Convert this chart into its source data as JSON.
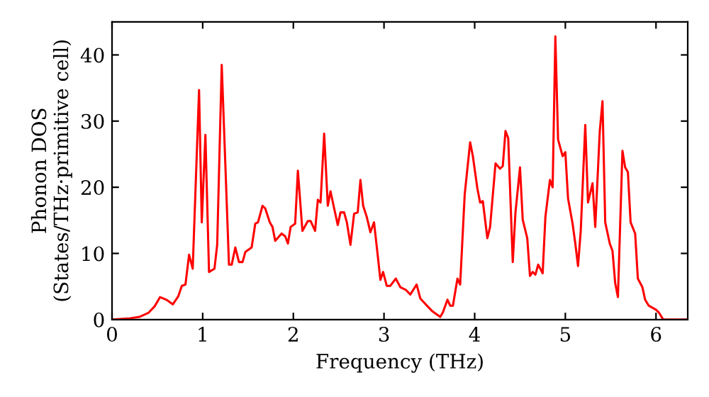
{
  "chart_data": {
    "type": "line",
    "xlabel": "Frequency (THz)",
    "ylabel": "Phonon DOS\n(States/THz·primitive cell)",
    "xlim": [
      0,
      6.35
    ],
    "ylim": [
      0,
      45
    ],
    "xticks": [
      0,
      1,
      2,
      3,
      4,
      5,
      6
    ],
    "yticks": [
      0,
      10,
      20,
      30,
      40
    ],
    "grid": false,
    "legend": false,
    "series": [
      {
        "color": "#ff0000",
        "x": [
          0,
          0.2,
          0.3,
          0.4,
          0.47,
          0.53,
          0.6,
          0.67,
          0.73,
          0.77,
          0.81,
          0.85,
          0.89,
          0.96,
          0.99,
          1.03,
          1.07,
          1.13,
          1.16,
          1.21,
          1.29,
          1.32,
          1.36,
          1.4,
          1.44,
          1.47,
          1.54,
          1.58,
          1.61,
          1.66,
          1.69,
          1.74,
          1.77,
          1.8,
          1.87,
          1.91,
          1.94,
          1.97,
          2.02,
          2.05,
          2.1,
          2.16,
          2.19,
          2.24,
          2.27,
          2.3,
          2.34,
          2.38,
          2.41,
          2.45,
          2.49,
          2.52,
          2.56,
          2.59,
          2.63,
          2.67,
          2.71,
          2.74,
          2.77,
          2.81,
          2.85,
          2.89,
          2.93,
          2.96,
          2.99,
          3.03,
          3.07,
          3.13,
          3.18,
          3.24,
          3.29,
          3.36,
          3.4,
          3.46,
          3.53,
          3.62,
          3.65,
          3.7,
          3.73,
          3.76,
          3.81,
          3.84,
          3.89,
          3.95,
          3.98,
          4.03,
          4.06,
          4.09,
          4.14,
          4.17,
          4.23,
          4.28,
          4.31,
          4.34,
          4.37,
          4.42,
          4.45,
          4.5,
          4.53,
          4.58,
          4.61,
          4.64,
          4.67,
          4.7,
          4.75,
          4.78,
          4.83,
          4.86,
          4.89,
          4.92,
          4.97,
          5.0,
          5.03,
          5.08,
          5.11,
          5.14,
          5.17,
          5.22,
          5.25,
          5.3,
          5.33,
          5.38,
          5.41,
          5.44,
          5.49,
          5.52,
          5.55,
          5.58,
          5.63,
          5.66,
          5.69,
          5.72,
          5.77,
          5.8,
          5.85,
          5.88,
          5.92,
          6.0,
          6.03,
          6.08,
          6.35
        ],
        "values": [
          0,
          0.2,
          0.4,
          1.0,
          2.0,
          3.4,
          3.0,
          2.3,
          3.5,
          5.1,
          5.3,
          9.8,
          7.7,
          34.7,
          14.7,
          27.9,
          7.2,
          7.7,
          11.3,
          38.5,
          8.3,
          8.3,
          10.9,
          8.7,
          8.7,
          10.2,
          10.9,
          14.5,
          14.7,
          17.2,
          16.8,
          14.7,
          14.0,
          11.9,
          13.0,
          12.6,
          11.5,
          14.0,
          14.5,
          22.5,
          13.4,
          14.9,
          14.9,
          13.4,
          18.1,
          17.7,
          28.1,
          17.2,
          19.4,
          16.8,
          14.3,
          16.2,
          16.2,
          14.7,
          11.3,
          16.0,
          16.2,
          21.1,
          17.2,
          15.5,
          13.2,
          14.7,
          9.8,
          6.0,
          7.2,
          5.1,
          5.1,
          6.2,
          4.9,
          4.5,
          3.8,
          5.3,
          3.2,
          2.3,
          1.3,
          0.4,
          1.1,
          3.0,
          2.1,
          2.1,
          6.2,
          5.3,
          18.9,
          26.8,
          24.7,
          19.8,
          17.7,
          17.9,
          12.3,
          14.0,
          23.6,
          22.8,
          23.2,
          28.5,
          27.4,
          8.7,
          16.2,
          23.0,
          15.1,
          12.3,
          6.6,
          7.2,
          6.8,
          8.3,
          7.0,
          15.5,
          21.1,
          20.0,
          42.8,
          27.2,
          24.7,
          25.3,
          18.3,
          14.5,
          11.5,
          8.1,
          13.4,
          29.4,
          17.7,
          20.6,
          14.0,
          28.5,
          33.0,
          14.7,
          11.5,
          10.4,
          5.5,
          3.4,
          25.5,
          23.0,
          22.3,
          14.7,
          13.0,
          6.2,
          4.9,
          3.0,
          2.1,
          1.5,
          1.1,
          0,
          0
        ]
      }
    ]
  }
}
